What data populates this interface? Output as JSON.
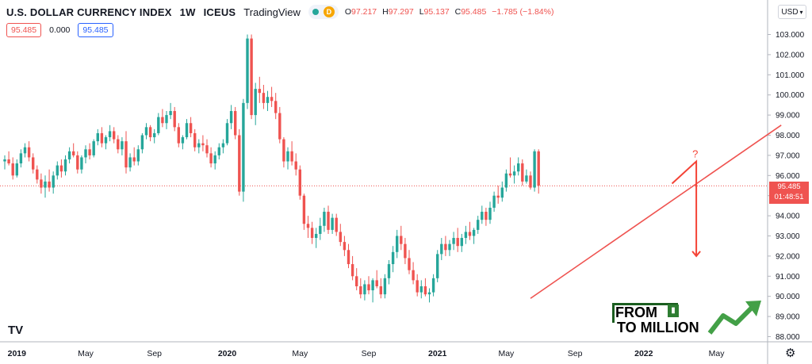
{
  "header": {
    "title": "U.S. DOLLAR CURRENCY INDEX",
    "interval": "1W",
    "exchange": "ICEUS",
    "source": "TradingView",
    "badge": "D",
    "ohlc": {
      "o_label": "O",
      "o": "97.217",
      "h_label": "H",
      "h": "97.297",
      "l_label": "L",
      "l": "95.137",
      "c_label": "C",
      "c": "95.485",
      "change": "−1.785 (−1.84%)"
    }
  },
  "indicator": {
    "v1": "95.485",
    "v2": "0.000",
    "v3": "95.485"
  },
  "currency_button": "USD",
  "price_tag": {
    "price": "95.485",
    "countdown": "01:48:51"
  },
  "branding": {
    "line1": "FROM",
    "line2": "TO MILLION"
  },
  "annotation": {
    "question": "?"
  },
  "colors": {
    "up": "#26a69a",
    "down": "#ef5350",
    "trendline": "#ef5350",
    "arrow": "#f44336"
  },
  "chart_data": {
    "type": "candlestick",
    "title": "U.S. DOLLAR CURRENCY INDEX",
    "ylim": [
      88.0,
      103.5
    ],
    "y_ticks": [
      "103.000",
      "102.000",
      "101.000",
      "100.000",
      "99.000",
      "98.000",
      "97.000",
      "96.000",
      "95.000",
      "94.000",
      "93.000",
      "92.000",
      "91.000",
      "90.000",
      "89.000",
      "88.000"
    ],
    "x_ticks": [
      "2019",
      "May",
      "Sep",
      "2020",
      "May",
      "Sep",
      "2021",
      "May",
      "Sep",
      "2022",
      "May"
    ],
    "x_tick_weeks": [
      3,
      20,
      37,
      55,
      73,
      90,
      107,
      124,
      141,
      158,
      176
    ],
    "current_price": 95.485,
    "trendline": {
      "from": {
        "week": 130,
        "price": 89.9
      },
      "to": {
        "week": 192,
        "price": 98.5
      }
    },
    "forecast_path": [
      {
        "week": 165,
        "price": 95.6
      },
      {
        "week": 171,
        "price": 96.7
      },
      {
        "week": 171,
        "price": 92.0
      }
    ],
    "candles": [
      [
        96.7,
        97.0,
        96.3,
        96.8
      ],
      [
        96.8,
        97.2,
        96.5,
        96.6
      ],
      [
        96.6,
        96.9,
        95.8,
        96.0
      ],
      [
        96.0,
        96.8,
        95.9,
        96.6
      ],
      [
        96.6,
        97.3,
        96.4,
        97.1
      ],
      [
        97.1,
        97.6,
        96.9,
        97.4
      ],
      [
        97.4,
        97.7,
        96.7,
        96.9
      ],
      [
        96.9,
        97.1,
        96.1,
        96.3
      ],
      [
        96.3,
        96.5,
        95.6,
        95.8
      ],
      [
        95.8,
        96.1,
        95.1,
        95.4
      ],
      [
        95.4,
        96.0,
        94.9,
        95.7
      ],
      [
        95.7,
        96.3,
        95.2,
        95.4
      ],
      [
        95.4,
        96.2,
        95.1,
        96.0
      ],
      [
        96.0,
        96.7,
        95.8,
        96.5
      ],
      [
        96.5,
        96.8,
        95.9,
        96.2
      ],
      [
        96.2,
        97.0,
        96.0,
        96.8
      ],
      [
        96.8,
        97.4,
        96.6,
        97.2
      ],
      [
        97.2,
        97.6,
        96.9,
        97.0
      ],
      [
        97.0,
        97.2,
        96.1,
        96.3
      ],
      [
        96.3,
        97.0,
        96.1,
        96.9
      ],
      [
        96.9,
        97.5,
        96.6,
        97.3
      ],
      [
        97.3,
        97.6,
        96.8,
        97.0
      ],
      [
        97.0,
        97.8,
        96.9,
        97.7
      ],
      [
        97.7,
        98.3,
        97.5,
        98.1
      ],
      [
        98.1,
        98.4,
        97.4,
        97.6
      ],
      [
        97.6,
        98.0,
        97.3,
        97.9
      ],
      [
        97.9,
        98.5,
        97.7,
        98.2
      ],
      [
        98.2,
        98.4,
        97.6,
        97.8
      ],
      [
        97.8,
        98.0,
        97.1,
        97.3
      ],
      [
        97.3,
        97.9,
        97.0,
        97.7
      ],
      [
        97.7,
        98.2,
        96.1,
        96.4
      ],
      [
        96.4,
        97.1,
        96.2,
        96.9
      ],
      [
        96.9,
        97.4,
        96.5,
        96.7
      ],
      [
        96.7,
        97.5,
        96.5,
        97.3
      ],
      [
        97.3,
        98.1,
        97.1,
        98.0
      ],
      [
        98.0,
        98.6,
        97.8,
        98.4
      ],
      [
        98.4,
        98.5,
        97.7,
        97.9
      ],
      [
        97.9,
        98.3,
        97.6,
        98.1
      ],
      [
        98.1,
        99.1,
        98.0,
        98.9
      ],
      [
        98.9,
        99.3,
        98.4,
        98.6
      ],
      [
        98.6,
        99.2,
        98.3,
        99.0
      ],
      [
        99.0,
        99.6,
        98.8,
        99.2
      ],
      [
        99.2,
        99.4,
        98.2,
        98.4
      ],
      [
        98.4,
        98.6,
        97.4,
        97.6
      ],
      [
        97.6,
        98.0,
        97.3,
        97.9
      ],
      [
        97.9,
        98.8,
        97.8,
        98.6
      ],
      [
        98.6,
        98.9,
        97.9,
        98.1
      ],
      [
        98.1,
        98.3,
        97.2,
        97.4
      ],
      [
        97.4,
        97.8,
        97.1,
        97.6
      ],
      [
        97.6,
        98.0,
        97.2,
        97.5
      ],
      [
        97.5,
        97.8,
        96.9,
        97.1
      ],
      [
        97.1,
        97.4,
        96.4,
        96.6
      ],
      [
        96.6,
        97.2,
        96.3,
        97.0
      ],
      [
        97.0,
        97.6,
        96.8,
        97.4
      ],
      [
        97.4,
        97.8,
        97.1,
        97.6
      ],
      [
        97.6,
        98.8,
        97.5,
        98.6
      ],
      [
        98.6,
        99.5,
        98.3,
        99.2
      ],
      [
        99.2,
        99.4,
        97.8,
        98.0
      ],
      [
        98.0,
        98.3,
        95.0,
        95.2
      ],
      [
        95.2,
        99.8,
        94.7,
        99.6
      ],
      [
        99.6,
        103.0,
        99.3,
        102.8
      ],
      [
        102.8,
        103.0,
        98.8,
        99.0
      ],
      [
        99.0,
        100.6,
        98.5,
        100.3
      ],
      [
        100.3,
        100.9,
        99.6,
        100.1
      ],
      [
        100.1,
        100.5,
        99.3,
        99.6
      ],
      [
        99.6,
        100.2,
        99.2,
        99.9
      ],
      [
        99.9,
        100.4,
        99.4,
        99.7
      ],
      [
        99.7,
        100.1,
        98.8,
        99.1
      ],
      [
        99.1,
        99.4,
        97.6,
        97.8
      ],
      [
        97.8,
        97.9,
        96.4,
        96.7
      ],
      [
        96.7,
        97.4,
        96.3,
        97.2
      ],
      [
        97.2,
        97.7,
        96.5,
        96.7
      ],
      [
        96.7,
        97.1,
        96.0,
        96.3
      ],
      [
        96.3,
        96.5,
        94.8,
        95.0
      ],
      [
        95.0,
        95.1,
        93.3,
        93.6
      ],
      [
        93.6,
        94.0,
        92.9,
        93.4
      ],
      [
        93.4,
        93.7,
        92.6,
        92.9
      ],
      [
        92.9,
        93.4,
        92.4,
        93.1
      ],
      [
        93.1,
        93.9,
        92.8,
        93.5
      ],
      [
        93.5,
        94.4,
        93.2,
        94.2
      ],
      [
        94.2,
        94.5,
        93.1,
        93.3
      ],
      [
        93.3,
        94.1,
        93.1,
        93.9
      ],
      [
        93.9,
        94.1,
        93.0,
        93.2
      ],
      [
        93.2,
        93.6,
        92.5,
        92.7
      ],
      [
        92.7,
        93.0,
        92.0,
        92.3
      ],
      [
        92.3,
        92.6,
        91.4,
        91.6
      ],
      [
        91.6,
        92.0,
        90.8,
        91.0
      ],
      [
        91.0,
        91.4,
        90.3,
        90.5
      ],
      [
        90.5,
        90.9,
        89.9,
        90.1
      ],
      [
        90.1,
        90.8,
        89.8,
        90.6
      ],
      [
        90.6,
        91.0,
        90.1,
        90.3
      ],
      [
        90.3,
        90.9,
        89.7,
        90.8
      ],
      [
        90.8,
        91.3,
        90.4,
        90.5
      ],
      [
        90.5,
        90.9,
        89.9,
        90.1
      ],
      [
        90.1,
        91.1,
        89.9,
        90.9
      ],
      [
        90.9,
        91.8,
        90.6,
        91.6
      ],
      [
        91.6,
        92.5,
        91.2,
        92.2
      ],
      [
        92.2,
        93.3,
        91.9,
        93.0
      ],
      [
        93.0,
        93.5,
        92.3,
        92.6
      ],
      [
        92.6,
        92.9,
        91.6,
        91.9
      ],
      [
        91.9,
        92.3,
        91.1,
        91.3
      ],
      [
        91.3,
        91.7,
        90.6,
        90.8
      ],
      [
        90.8,
        91.1,
        90.0,
        90.2
      ],
      [
        90.2,
        90.8,
        89.9,
        90.5
      ],
      [
        90.5,
        90.9,
        90.0,
        90.1
      ],
      [
        90.1,
        90.4,
        89.7,
        90.2
      ],
      [
        90.2,
        91.1,
        90.0,
        90.9
      ],
      [
        90.9,
        92.3,
        90.7,
        92.1
      ],
      [
        92.1,
        92.9,
        91.8,
        92.6
      ],
      [
        92.6,
        93.0,
        92.0,
        92.3
      ],
      [
        92.3,
        92.8,
        92.0,
        92.6
      ],
      [
        92.6,
        93.2,
        92.3,
        92.9
      ],
      [
        92.9,
        93.4,
        92.2,
        92.5
      ],
      [
        92.5,
        93.1,
        92.2,
        92.9
      ],
      [
        92.9,
        93.5,
        92.6,
        93.2
      ],
      [
        93.2,
        93.7,
        92.8,
        93.0
      ],
      [
        93.0,
        93.4,
        92.6,
        93.3
      ],
      [
        93.3,
        94.0,
        93.1,
        93.8
      ],
      [
        93.8,
        94.5,
        93.6,
        94.2
      ],
      [
        94.2,
        94.4,
        93.5,
        93.8
      ],
      [
        93.8,
        94.7,
        93.6,
        94.4
      ],
      [
        94.4,
        95.2,
        94.2,
        95.0
      ],
      [
        95.0,
        95.5,
        94.6,
        94.9
      ],
      [
        94.9,
        95.7,
        94.7,
        95.4
      ],
      [
        95.4,
        96.3,
        95.2,
        96.1
      ],
      [
        96.1,
        96.9,
        95.9,
        96.0
      ],
      [
        96.0,
        96.5,
        95.6,
        96.2
      ],
      [
        96.2,
        96.9,
        96.0,
        96.6
      ],
      [
        96.6,
        96.8,
        95.5,
        95.7
      ],
      [
        95.7,
        96.3,
        95.6,
        96.0
      ],
      [
        96.0,
        96.2,
        95.3,
        95.4
      ],
      [
        95.4,
        97.3,
        95.2,
        97.2
      ],
      [
        97.2,
        97.3,
        95.1,
        95.5
      ]
    ]
  }
}
